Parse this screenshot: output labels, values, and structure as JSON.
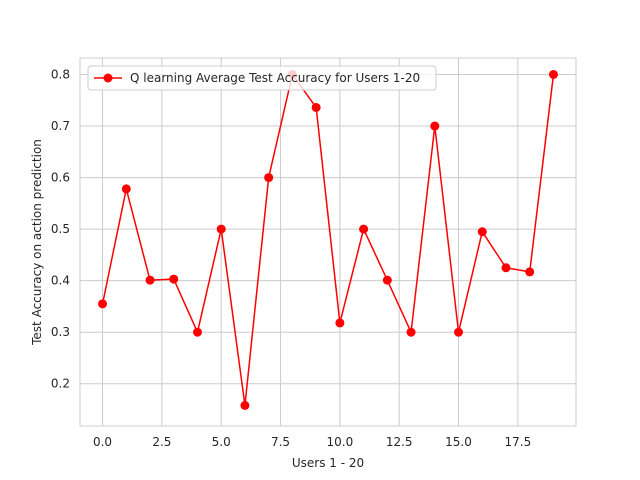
{
  "chart_data": {
    "type": "line",
    "title": "",
    "xlabel": "Users 1 - 20",
    "ylabel": "Test Accuracy on action prediction",
    "xlim": [
      -0.95,
      19.95
    ],
    "ylim": [
      0.118,
      0.832
    ],
    "x_ticks": [
      0.0,
      2.5,
      5.0,
      7.5,
      10.0,
      12.5,
      15.0,
      17.5
    ],
    "x_tick_labels": [
      "0.0",
      "2.5",
      "5.0",
      "7.5",
      "10.0",
      "12.5",
      "15.0",
      "17.5"
    ],
    "y_ticks": [
      0.2,
      0.3,
      0.4,
      0.5,
      0.6,
      0.7,
      0.8
    ],
    "y_tick_labels": [
      "0.2",
      "0.3",
      "0.4",
      "0.5",
      "0.6",
      "0.7",
      "0.8"
    ],
    "grid": true,
    "legend_position": "upper-left",
    "series": [
      {
        "name": "Q learning Average Test Accuracy for Users 1-20",
        "color": "#ff0000",
        "marker": "circle",
        "x": [
          0,
          1,
          2,
          3,
          4,
          5,
          6,
          7,
          8,
          9,
          10,
          11,
          12,
          13,
          14,
          15,
          16,
          17,
          18,
          19
        ],
        "y": [
          0.355,
          0.578,
          0.401,
          0.403,
          0.3,
          0.5,
          0.158,
          0.6,
          0.8,
          0.736,
          0.318,
          0.5,
          0.401,
          0.3,
          0.7,
          0.3,
          0.495,
          0.425,
          0.417,
          0.8
        ]
      }
    ]
  }
}
